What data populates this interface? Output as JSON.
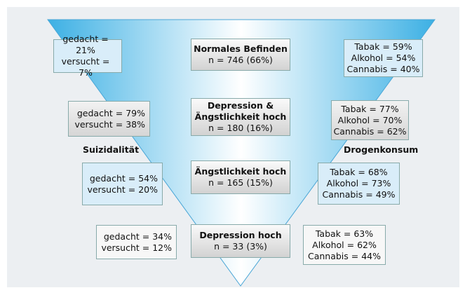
{
  "labels": {
    "left": "Suizidalität",
    "right": "Drogenkonsum"
  },
  "rows": [
    {
      "center": {
        "title": [
          "Normales Befinden"
        ],
        "n": "n = 746 (66%)"
      },
      "left": [
        "gedacht = 21%",
        "versucht = 7%"
      ],
      "right": [
        "Tabak = 59%",
        "Alkohol = 54%",
        "Cannabis = 40%"
      ]
    },
    {
      "center": {
        "title": [
          "Depression &",
          "Ängstlichkeit hoch"
        ],
        "n": "n = 180 (16%)"
      },
      "left": [
        "gedacht = 79%",
        "versucht = 38%"
      ],
      "right": [
        "Tabak = 77%",
        "Alkohol = 70%",
        "Cannabis = 62%"
      ]
    },
    {
      "center": {
        "title": [
          "Ängstlichkeit hoch"
        ],
        "n": "n = 165 (15%)"
      },
      "left": [
        "gedacht = 54%",
        "versucht = 20%"
      ],
      "right": [
        "Tabak = 68%",
        "Alkohol = 73%",
        "Cannabis = 49%"
      ]
    },
    {
      "center": {
        "title": [
          "Depression hoch"
        ],
        "n": "n = 33 (3%)"
      },
      "left": [
        "gedacht = 34%",
        "versucht = 12%"
      ],
      "right": [
        "Tabak = 63%",
        "Alkohol = 62%",
        "Cannabis = 44%"
      ]
    }
  ]
}
